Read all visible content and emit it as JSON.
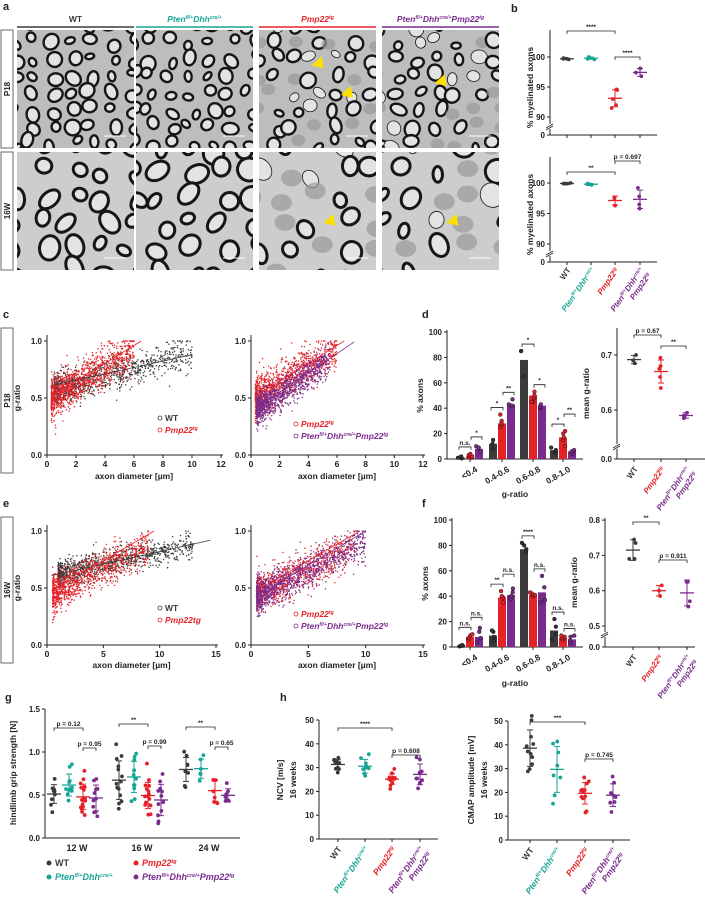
{
  "colors": {
    "wt": "#3b3b3b",
    "pten": "#17a595",
    "pmp": "#e52228",
    "combo": "#7a2c8c",
    "arrow": "#ffe100",
    "axis": "#222222"
  },
  "genotypes": {
    "wt": {
      "italic": false,
      "lines": [
        [
          [
            "WT",
            ""
          ]
        ]
      ]
    },
    "pten": {
      "italic": true,
      "lines": [
        [
          [
            "Pten",
            "fl/+"
          ],
          [
            "Dhh",
            "cre/+"
          ]
        ]
      ]
    },
    "pmp": {
      "italic": true,
      "lines": [
        [
          [
            "Pmp22",
            "tg"
          ]
        ]
      ]
    },
    "combo": {
      "italic": true,
      "lines": [
        [
          [
            "Pten",
            "fl/+"
          ],
          [
            "Dhh",
            "cre/+"
          ],
          [
            "Pmp22",
            "tg"
          ]
        ]
      ]
    },
    "combo2": {
      "italic": true,
      "lines": [
        [
          [
            "Pten",
            "fl/+"
          ],
          [
            "Dhh",
            "cre/+"
          ]
        ],
        [
          [
            "Pmp22",
            "tg"
          ]
        ]
      ]
    }
  },
  "panel_a": {
    "label": "a",
    "columns": [
      "wt",
      "pten",
      "pmp",
      "combo"
    ],
    "rows": [
      "P18",
      "16W"
    ]
  },
  "panel_b": {
    "label": "b",
    "ylabel": "% myelinated axons",
    "groups": [
      "wt",
      "pten",
      "pmp",
      "combo2"
    ],
    "charts": [
      {
        "timepoint": "P18",
        "ticks": [
          "0",
          "90",
          "95",
          "100"
        ],
        "points": {
          "wt": [
            99.6,
            99.7,
            99.7,
            99.8
          ],
          "pten": [
            99.6,
            99.9,
            100,
            99.7
          ],
          "pmp": [
            94.6,
            94.5,
            93,
            92,
            91.5
          ],
          "combo2": [
            98.1,
            97.4,
            96.8
          ]
        },
        "brackets": [
          {
            "from": 0,
            "to": 2,
            "text": "****"
          },
          {
            "from": 2,
            "to": 3,
            "text": "****"
          }
        ]
      },
      {
        "timepoint": "16W",
        "ticks": [
          "0",
          "90",
          "95",
          "100"
        ],
        "points": {
          "wt": [
            99.9,
            99.9,
            99.9,
            100
          ],
          "pten": [
            99.7,
            99.8,
            99.9,
            99.8
          ],
          "pmp": [
            97.6,
            97.5,
            96.3
          ],
          "combo2": [
            99.2,
            97.8,
            96.5,
            95.8
          ]
        },
        "brackets": [
          {
            "from": 0,
            "to": 2,
            "text": "**"
          },
          {
            "from": 2,
            "to": 3,
            "text": "p = 0.697"
          }
        ]
      }
    ]
  },
  "panel_c": {
    "label": "c",
    "row": "P18",
    "ylabel": "g-ratio",
    "xlabel": "axon diameter [µm]",
    "xticks": [
      "0",
      "2",
      "4",
      "6",
      "8",
      "10",
      "12"
    ],
    "yticks": [
      "0.0",
      "0.5",
      "1.0"
    ],
    "plots": [
      {
        "series": [
          {
            "key": "wt",
            "legend": "WT",
            "n": 900,
            "dmin": 0.5,
            "dmax": 10,
            "intercept": 0.55,
            "slope": 0.035,
            "noise": 0.07
          },
          {
            "key": "pmp",
            "legend_key": "pmp",
            "n": 1100,
            "dmin": 0.3,
            "dmax": 6,
            "intercept": 0.48,
            "slope": 0.075,
            "noise": 0.09
          }
        ],
        "fits": [
          {
            "key": "wt",
            "intercept": 0.6,
            "slope": 0.028,
            "xmax": 10
          },
          {
            "key": "pmp",
            "intercept": 0.49,
            "slope": 0.082,
            "xmax": 6.5
          }
        ]
      },
      {
        "series": [
          {
            "key": "pmp",
            "legend_key": "pmp",
            "n": 1000,
            "dmin": 0.3,
            "dmax": 6,
            "intercept": 0.48,
            "slope": 0.075,
            "noise": 0.09
          },
          {
            "key": "combo",
            "legend_key": "combo",
            "n": 1000,
            "dmin": 0.4,
            "dmax": 5.5,
            "intercept": 0.36,
            "slope": 0.085,
            "noise": 0.07
          }
        ],
        "fits": [
          {
            "key": "pmp",
            "intercept": 0.49,
            "slope": 0.082,
            "xmax": 6.5
          },
          {
            "key": "combo",
            "intercept": 0.38,
            "slope": 0.085,
            "xmax": 7.2
          }
        ]
      }
    ]
  },
  "panel_d": {
    "label": "d",
    "ylabel": "% axons",
    "xlabel": "g-ratio",
    "yticks": [
      "0",
      "20",
      "40",
      "60",
      "80",
      "100"
    ],
    "bins": [
      "<0.4",
      "0.4-0.6",
      "0.6-0.8",
      "0.8-1.0"
    ],
    "bars": {
      "wt": [
        1,
        12,
        78,
        7
      ],
      "pmp": [
        2,
        28,
        50,
        17
      ],
      "combo": [
        8,
        43,
        42,
        6
      ]
    },
    "points": {
      "wt": [
        [
          0.5,
          1,
          2
        ],
        [
          8,
          12,
          15
        ],
        [
          65,
          85,
          85
        ],
        [
          5,
          7,
          9
        ]
      ],
      "pmp": [
        [
          1,
          2,
          3,
          4,
          2
        ],
        [
          25,
          27,
          28,
          30,
          35
        ],
        [
          45,
          48,
          50,
          53,
          45
        ],
        [
          10,
          15,
          17,
          20,
          22
        ]
      ],
      "combo": [
        [
          6,
          10,
          9
        ],
        [
          42,
          43,
          47
        ],
        [
          40,
          41,
          43
        ],
        [
          4,
          6,
          7
        ]
      ]
    },
    "significance": [
      [
        "n.s.",
        "*"
      ],
      [
        "*",
        "**"
      ],
      [
        "*",
        "*"
      ],
      [
        "*",
        "**"
      ]
    ],
    "mean": {
      "ylabel": "mean g-ratio",
      "yticks": [
        "0.0",
        "0.6",
        "0.7"
      ],
      "groups": [
        "wt",
        "pmp",
        "combo2"
      ],
      "points": {
        "wt": [
          0.7,
          0.69,
          0.685
        ],
        "pmp": [
          0.695,
          0.68,
          0.675,
          0.66,
          0.64
        ],
        "combo2": [
          0.595,
          0.59,
          0.585
        ]
      },
      "brackets": [
        {
          "from": 0,
          "to": 1,
          "text": "p = 0.67"
        },
        {
          "from": 1,
          "to": 2,
          "text": "**"
        }
      ]
    }
  },
  "panel_e": {
    "label": "e",
    "row": "16W",
    "ylabel": "g-ratio",
    "xlabel": "axon diameter [µm]",
    "xticks": [
      "0",
      "5",
      "10",
      "15"
    ],
    "yticks": [
      "0.0",
      "0.5",
      "1.0"
    ],
    "legend_plain_pmp": "Pmp22tg",
    "plots": [
      {
        "series": [
          {
            "key": "wt",
            "legend": "WT",
            "n": 1000,
            "dmin": 1,
            "dmax": 13,
            "intercept": 0.6,
            "slope": 0.022,
            "noise": 0.06
          },
          {
            "key": "pmp",
            "legend_plain": true,
            "n": 1000,
            "dmin": 0.5,
            "dmax": 9,
            "intercept": 0.42,
            "slope": 0.05,
            "noise": 0.08
          }
        ],
        "fits": [
          {
            "key": "wt",
            "intercept": 0.6,
            "slope": 0.022,
            "xmax": 14.5
          },
          {
            "key": "pmp",
            "intercept": 0.45,
            "slope": 0.058,
            "xmax": 9.5
          }
        ]
      },
      {
        "series": [
          {
            "key": "pmp",
            "legend_key": "pmp",
            "n": 900,
            "dmin": 0.5,
            "dmax": 9,
            "intercept": 0.42,
            "slope": 0.05,
            "noise": 0.08
          },
          {
            "key": "combo",
            "legend_key": "combo",
            "n": 1000,
            "dmin": 0.5,
            "dmax": 10,
            "intercept": 0.4,
            "slope": 0.05,
            "noise": 0.08
          }
        ],
        "fits": [
          {
            "key": "pmp",
            "intercept": 0.45,
            "slope": 0.058,
            "xmax": 9.5
          },
          {
            "key": "combo",
            "intercept": 0.4,
            "slope": 0.062,
            "xmax": 10
          }
        ]
      }
    ]
  },
  "panel_f": {
    "label": "f",
    "ylabel": "% axons",
    "xlabel": "g-ratio",
    "yticks": [
      "0",
      "20",
      "40",
      "60",
      "80",
      "100"
    ],
    "bins": [
      "<0.4",
      "0.4-0.6",
      "0.6-0.8",
      "0.8-1.0"
    ],
    "bars": {
      "wt": [
        1,
        9,
        77,
        13
      ],
      "pmp": [
        8,
        39,
        41,
        7
      ],
      "combo": [
        8,
        41,
        43,
        6
      ]
    },
    "points": {
      "wt": [
        [
          0.5,
          1,
          1,
          1.5
        ],
        [
          5,
          8,
          12,
          13
        ],
        [
          75,
          77,
          80,
          82
        ],
        [
          6,
          10,
          16,
          22
        ]
      ],
      "pmp": [
        [
          6,
          7,
          9,
          10
        ],
        [
          35,
          39,
          40,
          44
        ],
        [
          40,
          41,
          42,
          43
        ],
        [
          6,
          7,
          8,
          9
        ]
      ],
      "combo": [
        [
          4,
          7,
          12,
          15
        ],
        [
          38,
          40,
          43,
          46
        ],
        [
          35,
          37,
          47,
          56
        ],
        [
          3,
          5,
          8,
          9
        ]
      ]
    },
    "significance": [
      [
        "n.s.",
        "n.s."
      ],
      [
        "**",
        "n.s."
      ],
      [
        "****",
        "n.s."
      ],
      [
        "n.s.",
        "n.s."
      ]
    ],
    "mean": {
      "ylabel": "mean g-ratio",
      "yticks": [
        "0.0",
        "0.5",
        "0.6",
        "0.7",
        "0.8"
      ],
      "groups": [
        "wt",
        "pmp",
        "combo2"
      ],
      "points": {
        "wt": [
          0.745,
          0.735,
          0.69,
          0.69
        ],
        "pmp": [
          0.615,
          0.6,
          0.585
        ],
        "combo2": [
          0.625,
          0.625,
          0.57,
          0.555
        ]
      },
      "brackets": [
        {
          "from": 0,
          "to": 1,
          "text": "**"
        },
        {
          "from": 1,
          "to": 2,
          "text": "p = 0.911"
        }
      ]
    }
  },
  "panel_g": {
    "label": "g",
    "ylabel": "hindlimb grip strength [N]",
    "yticks": [
      "0.0",
      "0.5",
      "1.0",
      "1.5"
    ],
    "legend": [
      "wt",
      "pmp",
      "pten",
      "combo"
    ],
    "timepoints": [
      {
        "label": "12 W",
        "data": {
          "wt": [
            0.56,
            0.14,
            10
          ],
          "pten": [
            0.54,
            0.11,
            11
          ],
          "pmp": [
            0.45,
            0.12,
            16
          ],
          "combo": [
            0.43,
            0.13,
            11
          ]
        },
        "brackets": [
          "p = 0.12",
          "p = 0.95"
        ]
      },
      {
        "label": "16 W",
        "data": {
          "wt": [
            0.68,
            0.2,
            14
          ],
          "pten": [
            0.68,
            0.18,
            12
          ],
          "pmp": [
            0.52,
            0.16,
            16
          ],
          "combo": [
            0.51,
            0.18,
            12
          ]
        },
        "brackets": [
          "**",
          "p = 0.99"
        ]
      },
      {
        "label": "24 W",
        "data": {
          "wt": [
            0.78,
            0.14,
            9
          ],
          "pten": [
            0.75,
            0.14,
            6
          ],
          "pmp": [
            0.54,
            0.1,
            7
          ],
          "combo": [
            0.48,
            0.14,
            7
          ]
        },
        "brackets": [
          "**",
          "p = 0.65"
        ]
      }
    ]
  },
  "panel_h": {
    "label": "h",
    "groups": [
      "wt",
      "pten",
      "pmp",
      "combo2"
    ],
    "charts": [
      {
        "ylabel": "NCV [m/s]",
        "ylabel2": "16 weeks",
        "yticks": [
          "0",
          "10",
          "20",
          "30",
          "40",
          "50"
        ],
        "data": {
          "wt": [
            31,
            2,
            12
          ],
          "pten": [
            30.5,
            2.3,
            9
          ],
          "pmp": [
            25.5,
            2.4,
            12
          ],
          "combo2": [
            24.5,
            3.4,
            9
          ]
        },
        "brackets": [
          {
            "from": 0,
            "to": 2,
            "text": "****"
          },
          {
            "from": 2,
            "to": 3,
            "text": "p = 0.608"
          }
        ]
      },
      {
        "ylabel": "CMAP amplitude [mV]",
        "ylabel2": "16 weeks",
        "yticks": [
          "0",
          "10",
          "20",
          "30",
          "40",
          "50"
        ],
        "data": {
          "wt": [
            34.5,
            8,
            11
          ],
          "pten": [
            30.5,
            7.5,
            8
          ],
          "pmp": [
            18.3,
            5,
            12
          ],
          "combo2": [
            16,
            7,
            8
          ]
        },
        "brackets": [
          {
            "from": 0,
            "to": 2,
            "text": "***"
          },
          {
            "from": 2,
            "to": 3,
            "text": "p = 0.745"
          }
        ]
      }
    ]
  }
}
